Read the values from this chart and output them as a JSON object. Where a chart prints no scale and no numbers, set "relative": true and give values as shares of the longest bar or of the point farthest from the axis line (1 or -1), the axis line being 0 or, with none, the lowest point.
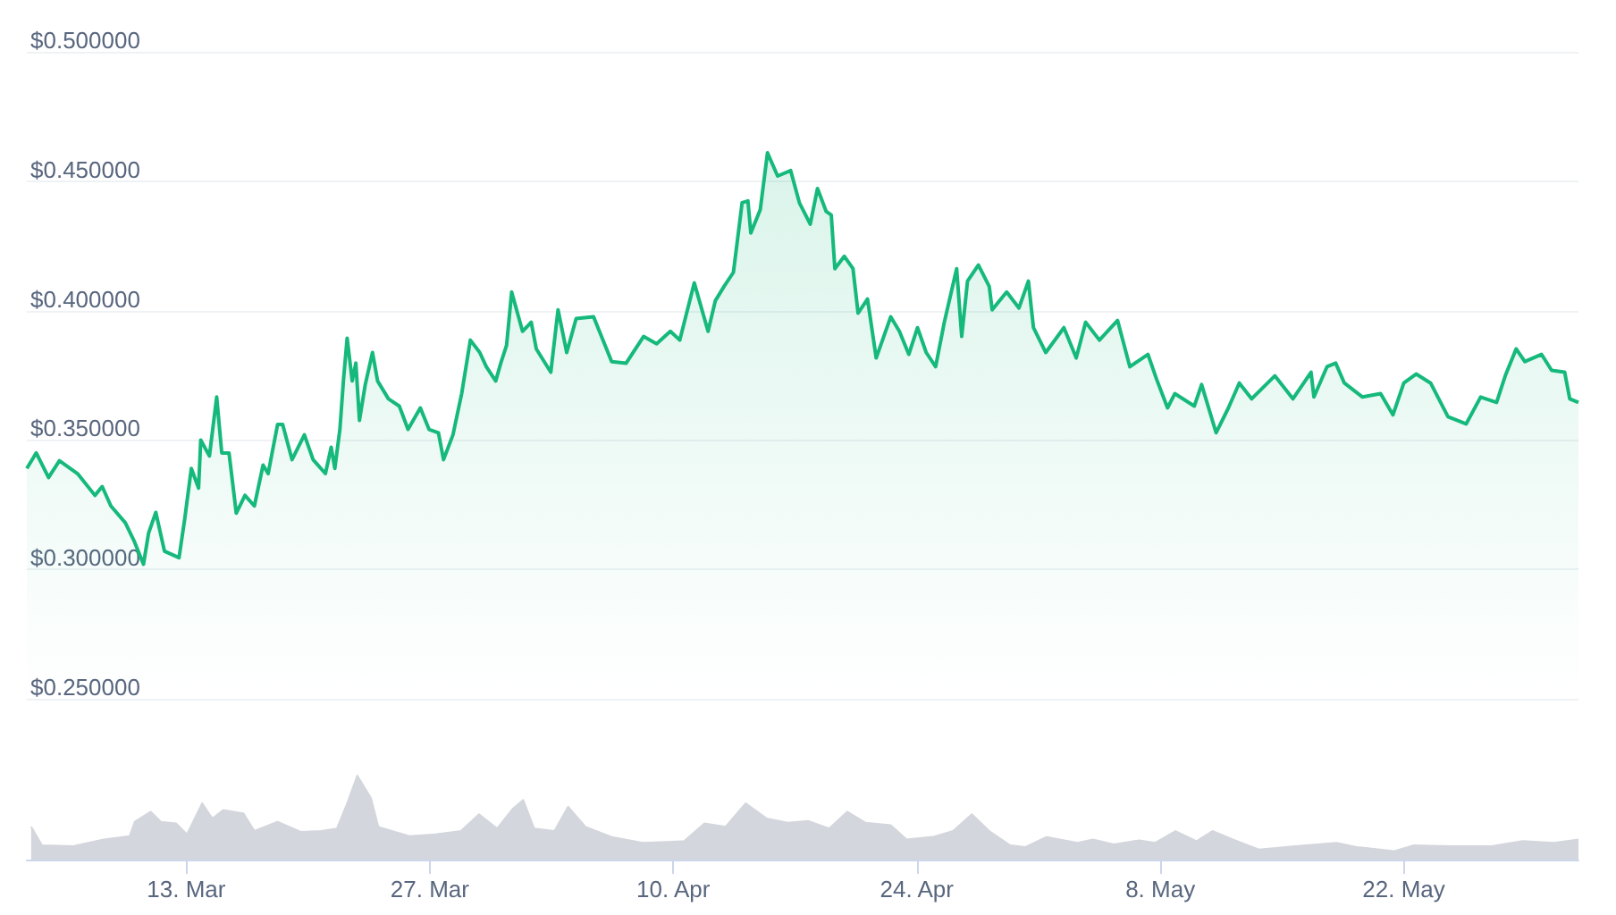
{
  "chart_data": [
    {
      "type": "area",
      "marker": "none",
      "grid": "y",
      "tick_labels": "y",
      "xlim": [
        "--03-03T20:00",
        "--06-01T01:00"
      ],
      "ylim": [
        0.25,
        0.5
      ],
      "yticks": [
        {
          "value": 0.25,
          "label": "$0.250000"
        },
        {
          "value": 0.3,
          "label": "$0.300000"
        },
        {
          "value": 0.35,
          "label": "$0.350000"
        },
        {
          "value": 0.4,
          "label": "$0.400000"
        },
        {
          "value": 0.45,
          "label": "$0.450000"
        },
        {
          "value": 0.5,
          "label": "$0.500000"
        }
      ],
      "x": [
        "--03-03T20:00",
        "--03-04T09:00",
        "--03-05T02:00",
        "--03-05T17:00",
        "--03-06T18:00",
        "--03-07T18:00",
        "--03-08T04:00",
        "--03-08T16:00",
        "--03-09T12:00",
        "--03-10T00:00",
        "--03-10T13:00",
        "--03-10T20:00",
        "--03-11T06:00",
        "--03-11T18:00",
        "--03-12T14:00",
        "--03-12T22:00",
        "--03-13T07:00",
        "--03-13T17:00",
        "--03-13T20:00",
        "--03-14T08:00",
        "--03-14T18:00",
        "--03-15T01:00",
        "--03-15T11:00",
        "--03-15T21:00",
        "--03-16T09:00",
        "--03-16T22:00",
        "--03-17T10:00",
        "--03-17T17:00",
        "--03-18T06:00",
        "--03-18T13:00",
        "--03-19T02:00",
        "--03-19T19:00",
        "--03-20T07:00",
        "--03-21T00:00",
        "--03-21T08:00",
        "--03-21T13:00",
        "--03-21T20:00",
        "--03-22T01:00",
        "--03-22T06:00",
        "--03-22T13:00",
        "--03-22T18:00",
        "--03-22T23:00",
        "--03-23T07:00",
        "--03-23T17:00",
        "--03-24T00:00",
        "--03-24T15:00",
        "--03-25T06:00",
        "--03-25T18:00",
        "--03-26T11:00",
        "--03-26T23:00",
        "--03-27T12:00",
        "--03-27T19:00",
        "--03-28T08:00",
        "--03-28T20:00",
        "--03-29T08:00",
        "--03-29T21:00",
        "--03-30T06:00",
        "--03-30T19:00",
        "--03-31T02:00",
        "--03-31T10:00",
        "--03-31T17:00",
        "--04-01T08:00",
        "--04-01T20:00",
        "--04-02T03:00",
        "--04-02T23:00",
        "--04-03T09:00",
        "--04-03T21:00",
        "--04-04T10:00",
        "--04-05T10:00",
        "--04-06T11:00",
        "--04-07T07:00",
        "--04-08T07:00",
        "--04-09T01:00",
        "--04-09T20:00",
        "--04-10T09:00",
        "--04-11T05:00",
        "--04-12T00:00",
        "--04-12T10:00",
        "--04-12T22:00",
        "--04-13T11:00",
        "--04-13T23:00",
        "--04-14T07:00",
        "--04-14T11:00",
        "--04-15T00:00",
        "--04-15T10:00",
        "--04-16T00:00",
        "--04-16T18:00",
        "--04-17T06:00",
        "--04-17T21:00",
        "--04-18T07:00",
        "--04-18T19:00",
        "--04-19T02:00",
        "--04-19T07:00",
        "--04-19T20:00",
        "--04-20T08:00",
        "--04-20T15:00",
        "--04-21T04:00",
        "--04-21T16:00",
        "--04-22T12:00",
        "--04-23T00:00",
        "--04-23T13:00",
        "--04-24T01:00",
        "--04-24T13:00",
        "--04-25T02:00",
        "--04-25T14:00",
        "--04-26T07:00",
        "--04-26T14:00",
        "--04-26T22:00",
        "--04-27T13:00",
        "--04-28T04:00",
        "--04-28T08:00",
        "--04-29T04:00",
        "--04-29T21:00",
        "--04-30T10:00",
        "--04-30T17:00",
        "--05-01T10:00",
        "--05-02T11:00",
        "--05-03T04:00",
        "--05-03T17:00",
        "--05-04T12:00",
        "--05-05T13:00",
        "--05-06T06:00",
        "--05-07T07:00",
        "--05-07T19:00",
        "--05-08T10:00",
        "--05-08T20:00",
        "--05-09T23:00",
        "--05-10T09:00",
        "--05-11T05:00",
        "--05-11T22:00",
        "--05-12T13:00",
        "--05-13T06:00",
        "--05-14T14:00",
        "--05-15T15:00",
        "--05-16T16:00",
        "--05-16T20:00",
        "--05-17T14:00",
        "--05-18T02:00",
        "--05-18T14:00",
        "--05-19T15:00",
        "--05-20T16:00",
        "--05-21T09:00",
        "--05-22T00:00",
        "--05-22T17:00",
        "--05-23T13:00",
        "--05-24T13:00",
        "--05-25T14:00",
        "--05-26T10:00",
        "--05-27T08:00",
        "--05-27T20:00",
        "--05-28T11:00",
        "--05-28T23:00",
        "--05-29T22:00",
        "--05-30T12:00",
        "--05-31T06:00",
        "--05-31T13:00",
        "--06-01T01:00"
      ],
      "series": [
        {
          "color": "#16b97c",
          "values": [
            0.339,
            0.345,
            0.3355,
            0.342,
            0.337,
            0.3286,
            0.332,
            0.3245,
            0.318,
            0.311,
            0.302,
            0.314,
            0.322,
            0.307,
            0.3045,
            0.3197,
            0.339,
            0.3314,
            0.35,
            0.3438,
            0.3666,
            0.345,
            0.345,
            0.3217,
            0.3286,
            0.3245,
            0.3403,
            0.337,
            0.356,
            0.356,
            0.3424,
            0.352,
            0.3424,
            0.337,
            0.3472,
            0.339,
            0.3541,
            0.3734,
            0.3893,
            0.3728,
            0.3797,
            0.3576,
            0.3714,
            0.3838,
            0.3728,
            0.3659,
            0.3631,
            0.3541,
            0.3624,
            0.3541,
            0.3528,
            0.3424,
            0.352,
            0.3679,
            0.3886,
            0.3838,
            0.3783,
            0.3728,
            0.3797,
            0.3866,
            0.4072,
            0.392,
            0.3955,
            0.3852,
            0.3762,
            0.4003,
            0.3838,
            0.3969,
            0.3976,
            0.3803,
            0.3797,
            0.39,
            0.3872,
            0.392,
            0.3886,
            0.4107,
            0.392,
            0.4038,
            0.4093,
            0.4148,
            0.4417,
            0.4424,
            0.43,
            0.439,
            0.461,
            0.452,
            0.4541,
            0.4417,
            0.4334,
            0.4472,
            0.4383,
            0.4369,
            0.4162,
            0.421,
            0.4162,
            0.399,
            0.4045,
            0.3817,
            0.3976,
            0.392,
            0.3831,
            0.3934,
            0.3838,
            0.3783,
            0.3955,
            0.4162,
            0.39,
            0.4114,
            0.4176,
            0.4093,
            0.4003,
            0.4072,
            0.401,
            0.4114,
            0.3934,
            0.3838,
            0.3934,
            0.3817,
            0.3955,
            0.3886,
            0.3962,
            0.3783,
            0.3831,
            0.3734,
            0.3624,
            0.3679,
            0.3631,
            0.3714,
            0.3528,
            0.3624,
            0.372,
            0.3659,
            0.3748,
            0.3659,
            0.3762,
            0.3666,
            0.3783,
            0.3797,
            0.372,
            0.3666,
            0.3679,
            0.3597,
            0.372,
            0.3755,
            0.372,
            0.359,
            0.3562,
            0.3666,
            0.3645,
            0.3748,
            0.3852,
            0.3803,
            0.3831,
            0.3769,
            0.3762,
            0.3659,
            0.3645
          ]
        }
      ]
    },
    {
      "type": "area",
      "relative": true,
      "marker": "none",
      "tick_labels": "x",
      "xlim": [
        "--03-03T20:00",
        "--06-01T01:00"
      ],
      "xticks": [
        {
          "value": "--03-13",
          "label": "13. Mar"
        },
        {
          "value": "--03-27",
          "label": "27. Mar"
        },
        {
          "value": "--04-10",
          "label": "10. Apr"
        },
        {
          "value": "--04-24",
          "label": "24. Apr"
        },
        {
          "value": "--05-08",
          "label": "8. May"
        },
        {
          "value": "--05-22",
          "label": "22. May"
        }
      ],
      "x": [
        "--03-04T02:00",
        "--03-04T17:00",
        "--03-06T12:00",
        "--03-08T06:00",
        "--03-09T18:00",
        "--03-10T01:00",
        "--03-10T23:00",
        "--03-11T13:00",
        "--03-12T10:00",
        "--03-13T01:00",
        "--03-13T22:00",
        "--03-14T12:00",
        "--03-15T03:00",
        "--03-16T07:00",
        "--03-16T22:00",
        "--03-18T06:00",
        "--03-19T14:00",
        "--03-20T18:00",
        "--03-21T16:00",
        "--03-22T06:00",
        "--03-22T20:00",
        "--03-23T15:00",
        "--03-24T01:00",
        "--03-25T20:00",
        "--03-27T08:00",
        "--03-28T19:00",
        "--03-29T20:00",
        "--03-30T21:00",
        "--03-31T19:00",
        "--04-01T09:00",
        "--04-02T00:00",
        "--04-03T04:00",
        "--04-03T23:00",
        "--04-04T23:00",
        "--04-06T11:00",
        "--04-08T06:00",
        "--04-10T15:00",
        "--04-11T19:00",
        "--04-13T00:00",
        "--04-14T04:00",
        "--04-15T09:00",
        "--04-16T14:00",
        "--04-17T18:00",
        "--04-18T23:00",
        "--04-20T00:00",
        "--04-21T01:00",
        "--04-22T12:00",
        "--04-23T10:00",
        "--04-24T22:00",
        "--04-26T02:00",
        "--04-27T04:00",
        "--04-28T04:00",
        "--04-29T09:00",
        "--04-30T06:00",
        "--05-01T11:00",
        "--05-03T06:00",
        "--05-04T03:00",
        "--05-05T08:00",
        "--05-06T19:00",
        "--05-07T17:00",
        "--05-08T21:00",
        "--05-10T02:00",
        "--05-11T00:00",
        "--05-12T04:00",
        "--05-13T16:00",
        "--05-15T18:00",
        "--05-18T03:00",
        "--05-19T07:00",
        "--05-21T10:00",
        "--05-22T14:00",
        "--05-24T16:00",
        "--05-27T01:00",
        "--05-28T20:00",
        "--05-30T15:00",
        "--06-01T01:00"
      ],
      "series": [
        {
          "color": "#d3d6dc",
          "values": [
            0.39,
            0.17,
            0.16,
            0.24,
            0.28,
            0.45,
            0.57,
            0.45,
            0.43,
            0.3,
            0.67,
            0.49,
            0.59,
            0.55,
            0.34,
            0.45,
            0.33,
            0.34,
            0.37,
            0.67,
            1,
            0.73,
            0.39,
            0.28,
            0.3,
            0.34,
            0.54,
            0.37,
            0.61,
            0.71,
            0.37,
            0.34,
            0.63,
            0.39,
            0.27,
            0.2,
            0.22,
            0.43,
            0.39,
            0.67,
            0.49,
            0.44,
            0.46,
            0.37,
            0.57,
            0.44,
            0.41,
            0.24,
            0.27,
            0.34,
            0.54,
            0.34,
            0.17,
            0.15,
            0.27,
            0.2,
            0.24,
            0.18,
            0.23,
            0.2,
            0.34,
            0.22,
            0.34,
            0.24,
            0.12,
            0.16,
            0.2,
            0.15,
            0.1,
            0.17,
            0.16,
            0.16,
            0.22,
            0.2,
            0.24
          ]
        }
      ]
    }
  ]
}
